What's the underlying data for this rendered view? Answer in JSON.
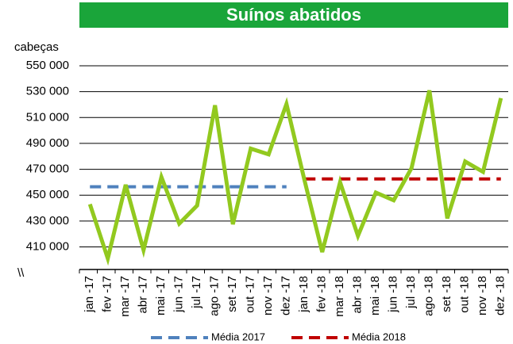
{
  "chart_data": {
    "type": "line",
    "title": "Suínos abatidos",
    "y_label": "cabeças",
    "axis_break": "\\\\",
    "categories": [
      "jan -17",
      "fev -17",
      "mar -17",
      "abr -17",
      "mai -17",
      "jun -17",
      "jul -17",
      "ago -17",
      "set -17",
      "out -17",
      "nov -17",
      "dez -17",
      "jan -18",
      "fev -18",
      "mar -18",
      "abr -18",
      "mai -18",
      "jun -18",
      "jul -18",
      "ago -18",
      "set -18",
      "out -18",
      "nov -18",
      "dez -18"
    ],
    "values": [
      443000,
      401000,
      458000,
      407500,
      464000,
      428000,
      442000,
      519500,
      427500,
      486000,
      481500,
      520500,
      462000,
      406000,
      460000,
      418500,
      452000,
      446000,
      471000,
      531000,
      432000,
      476000,
      468000,
      525000
    ],
    "color": "#92c91f",
    "series": [
      {
        "name": "Média 2017",
        "color": "#4f81bd",
        "values": [
          456500,
          456500,
          456500,
          456500,
          456500,
          456500,
          456500,
          456500,
          456500,
          456500,
          456500,
          456500,
          null,
          null,
          null,
          null,
          null,
          null,
          null,
          null,
          null,
          null,
          null,
          null
        ]
      },
      {
        "name": "Média 2018",
        "color": "#c00000",
        "values": [
          null,
          null,
          null,
          null,
          null,
          null,
          null,
          null,
          null,
          null,
          null,
          null,
          462500,
          462500,
          462500,
          462500,
          462500,
          462500,
          462500,
          462500,
          462500,
          462500,
          462500,
          462500
        ]
      }
    ],
    "ylim": [
      392500,
      558000
    ],
    "yticks": [
      {
        "value": 410000,
        "label": "410 000"
      },
      {
        "value": 430000,
        "label": "430 000"
      },
      {
        "value": 450000,
        "label": "450 000"
      },
      {
        "value": 470000,
        "label": "470 000"
      },
      {
        "value": 490000,
        "label": "490 000"
      },
      {
        "value": 510000,
        "label": "510 000"
      },
      {
        "value": 530000,
        "label": "530 000"
      },
      {
        "value": 550000,
        "label": "550 000"
      }
    ],
    "grid": true,
    "title_color": "#1aa53a"
  }
}
